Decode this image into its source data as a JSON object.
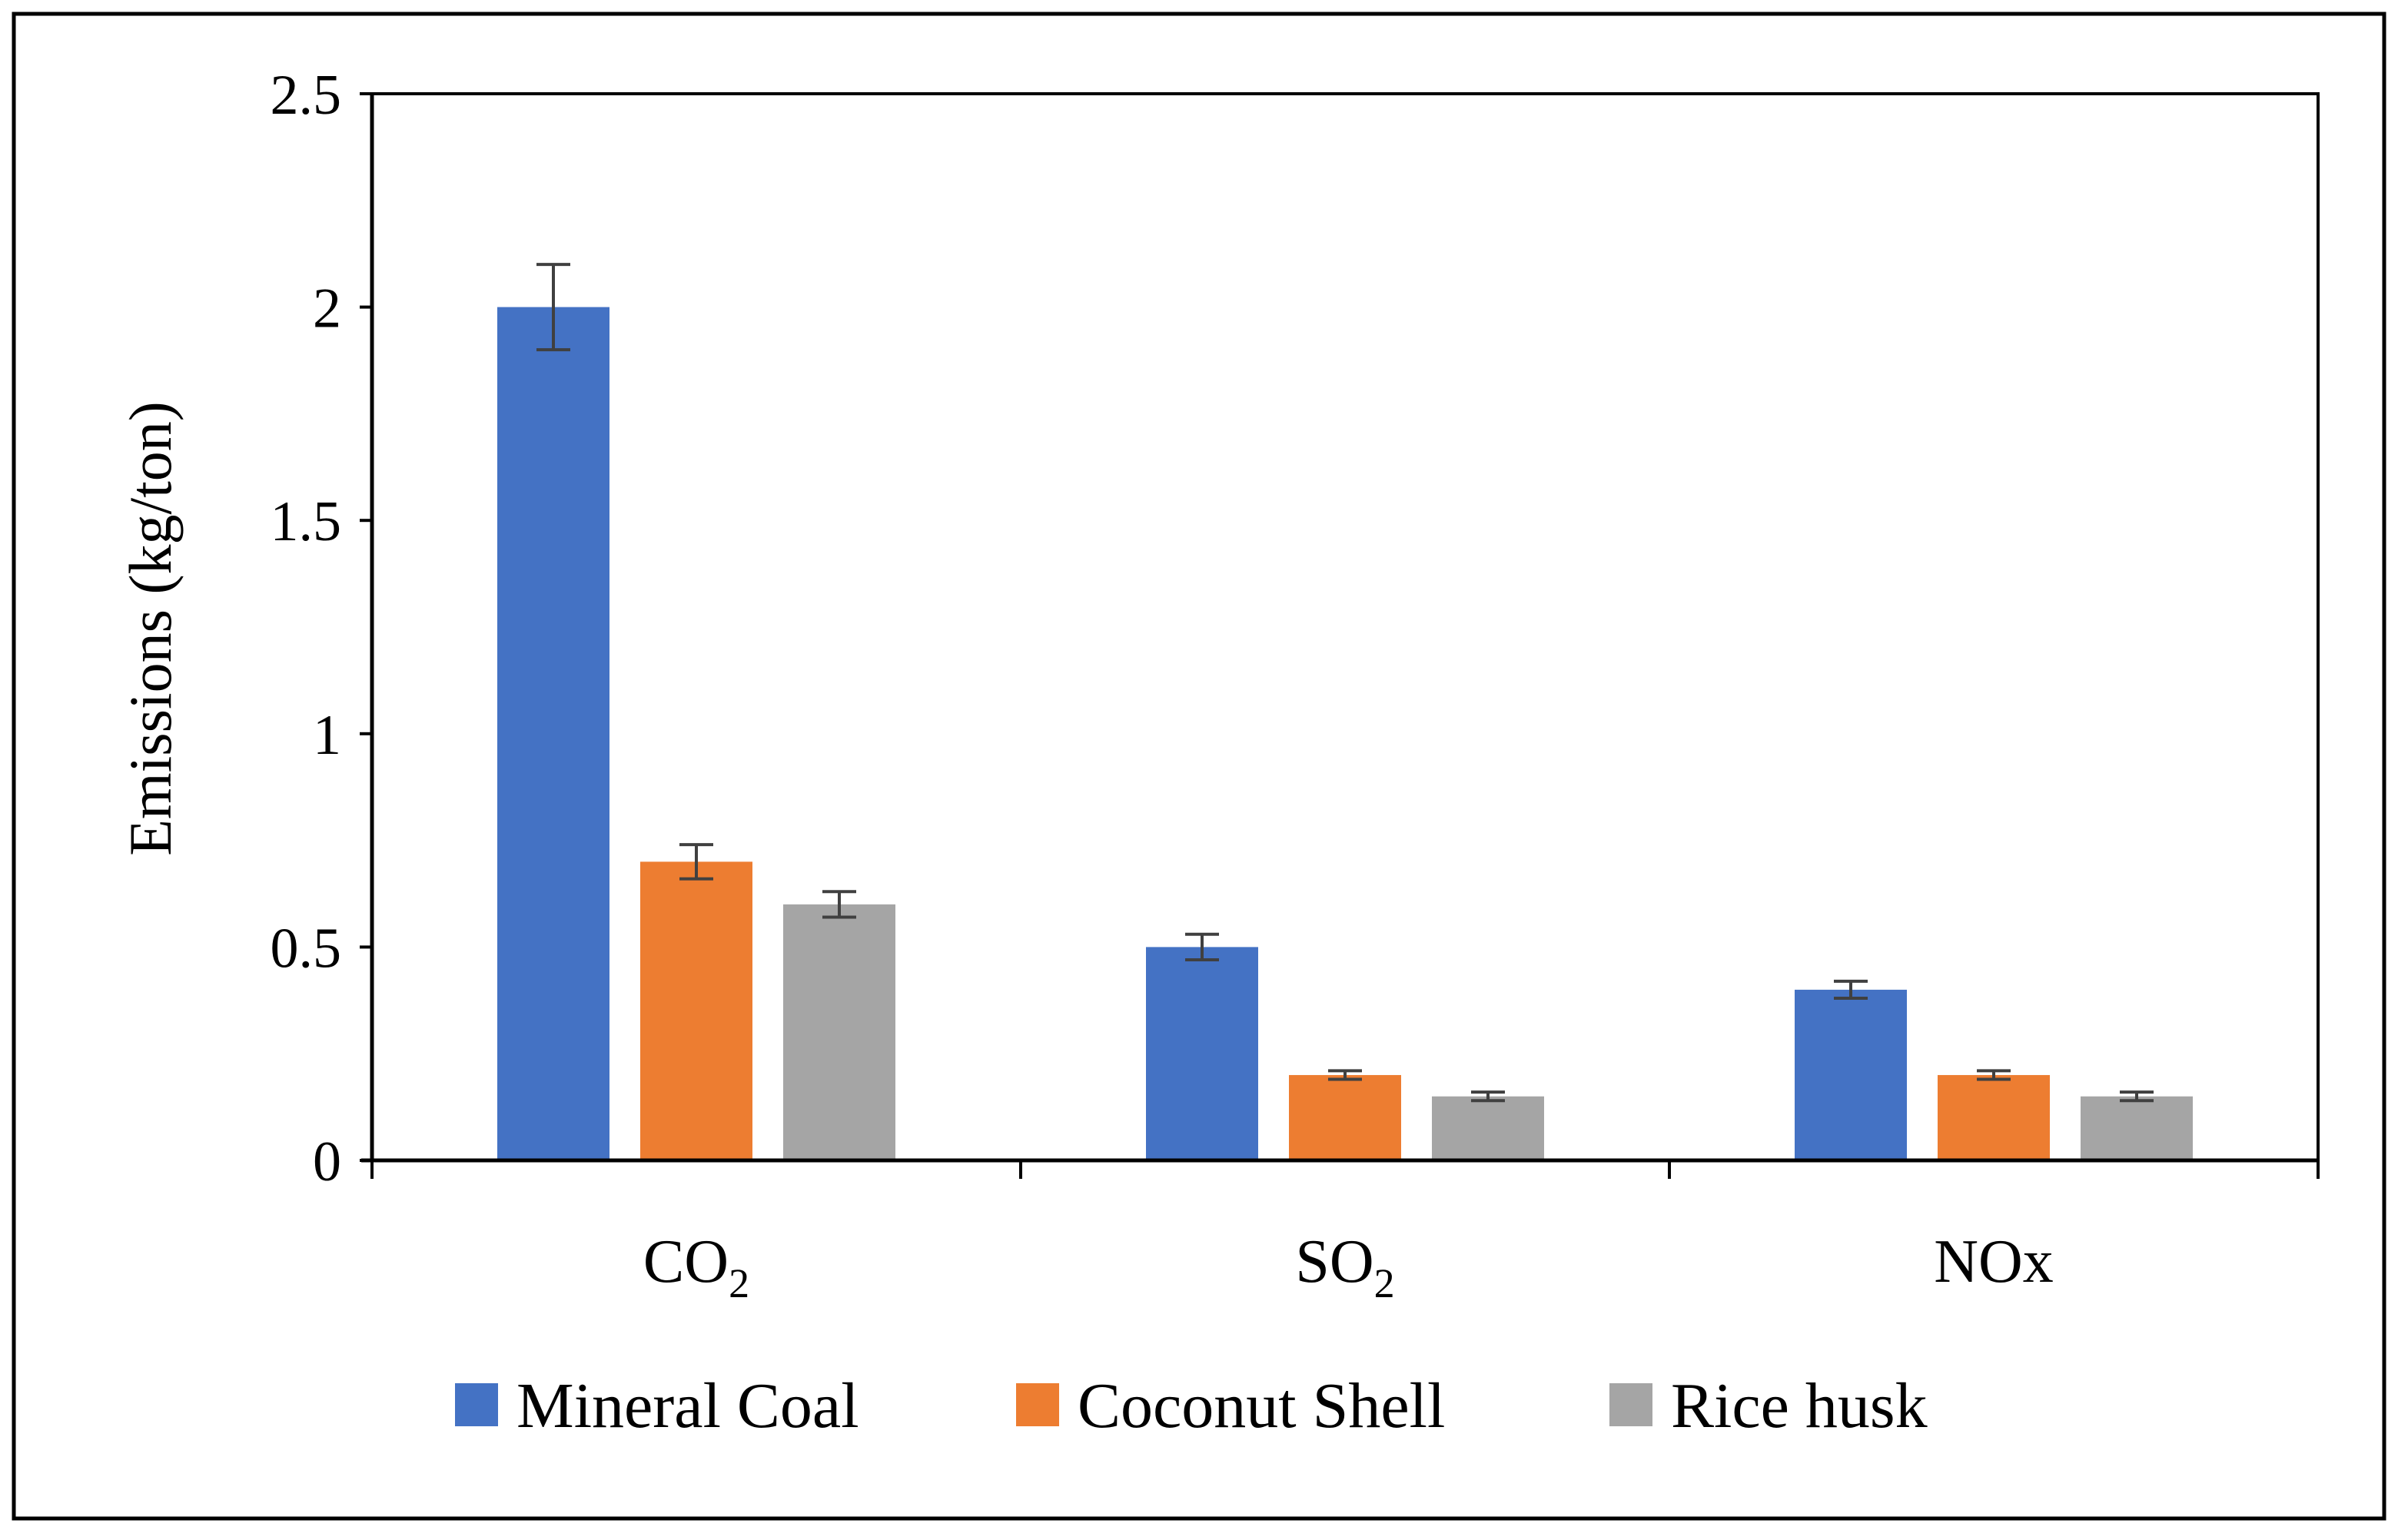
{
  "chart_data": {
    "type": "bar",
    "title": "",
    "xlabel": "",
    "ylabel": "Emissions (kg/ton)",
    "ylim": [
      0,
      2.5
    ],
    "yticks": [
      "0",
      "0.5",
      "1",
      "1.5",
      "2",
      "2.5"
    ],
    "ytick_values": [
      0,
      0.5,
      1,
      1.5,
      2,
      2.5
    ],
    "categories": [
      {
        "base": "CO",
        "sub": "2"
      },
      {
        "base": "SO",
        "sub": "2"
      },
      {
        "base": "NOx",
        "sub": ""
      }
    ],
    "series": [
      {
        "name": "Mineral Coal",
        "color": "#4472C4",
        "values": [
          2.0,
          0.5,
          0.4
        ],
        "errors": [
          0.1,
          0.03,
          0.02
        ]
      },
      {
        "name": "Coconut Shell",
        "color": "#ED7D31",
        "values": [
          0.7,
          0.2,
          0.2
        ],
        "errors": [
          0.04,
          0.01,
          0.01
        ]
      },
      {
        "name": "Rice husk",
        "color": "#A5A5A5",
        "values": [
          0.6,
          0.15,
          0.15
        ],
        "errors": [
          0.03,
          0.01,
          0.01
        ]
      }
    ],
    "grid": false,
    "legend_position": "bottom"
  }
}
